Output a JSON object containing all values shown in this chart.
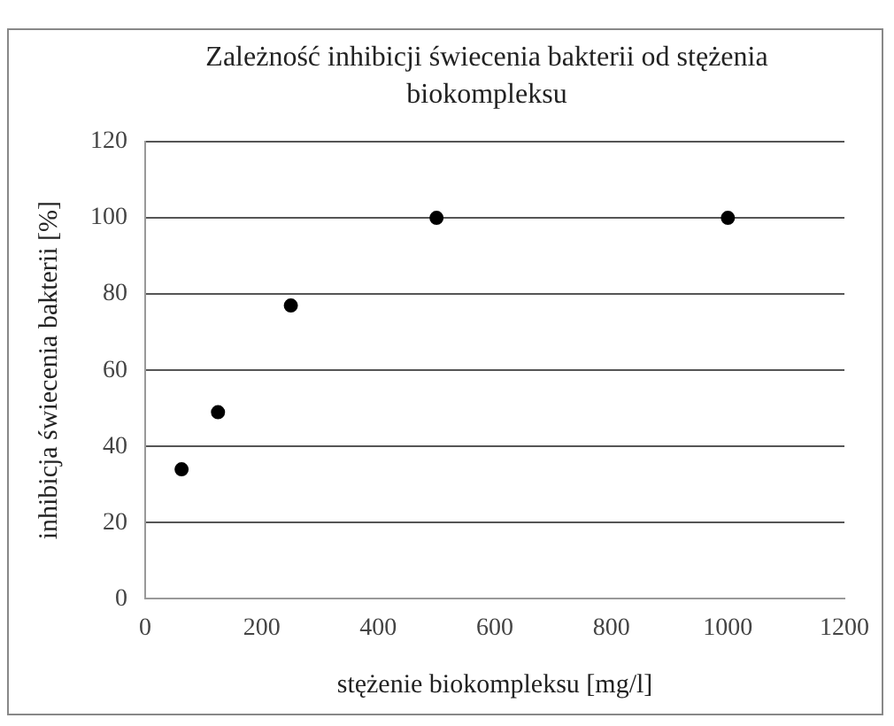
{
  "chart_data": {
    "type": "scatter",
    "title": "Zależność inhibicji świecenia bakterii od stężenia biokompleksu",
    "xlabel": "stężenie biokompleksu [mg/l]",
    "ylabel": "inhibicja świecenia bakterii [%]",
    "x": [
      62.5,
      125,
      250,
      500,
      1000
    ],
    "series": [
      {
        "color": "#000000",
        "values": [
          34,
          49,
          77,
          100,
          100
        ]
      }
    ],
    "xlim": [
      0,
      1200
    ],
    "xticks": [
      0,
      200,
      400,
      600,
      800,
      1000,
      1200
    ],
    "ylim": [
      0,
      120
    ],
    "yticks": [
      0,
      20,
      40,
      60,
      80,
      100,
      120
    ],
    "grid": "y",
    "legend": false,
    "marker": "circle"
  }
}
